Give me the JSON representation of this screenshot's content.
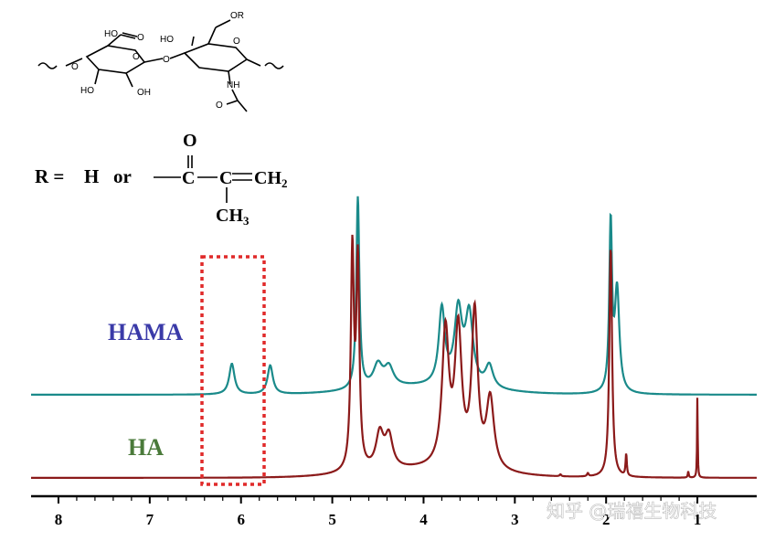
{
  "chart_data": {
    "type": "line",
    "x_axis": {
      "range": [
        8.3,
        0.35
      ],
      "direction": "reversed",
      "ticks": [
        8,
        7,
        6,
        5,
        4,
        3,
        2,
        1
      ],
      "tick_labels": [
        "8",
        "7",
        "6",
        "5",
        "4",
        "3",
        "2",
        "1"
      ]
    },
    "grid": false,
    "series": [
      {
        "name": "HAMA",
        "color": "#1a8a8a",
        "label_color": "#3a3aa8",
        "baseline": 0.0,
        "peaks": [
          {
            "x": 6.1,
            "height": 0.48,
            "width": 0.035
          },
          {
            "x": 5.68,
            "height": 0.45,
            "width": 0.035
          },
          {
            "x": 4.72,
            "height": 3.0,
            "width": 0.02
          },
          {
            "x": 4.5,
            "height": 0.35,
            "width": 0.06
          },
          {
            "x": 4.38,
            "height": 0.3,
            "width": 0.06
          },
          {
            "x": 3.8,
            "height": 1.18,
            "width": 0.04
          },
          {
            "x": 3.62,
            "height": 1.15,
            "width": 0.05
          },
          {
            "x": 3.5,
            "height": 1.1,
            "width": 0.05
          },
          {
            "x": 3.28,
            "height": 0.35,
            "width": 0.05
          },
          {
            "x": 1.95,
            "height": 2.6,
            "width": 0.018
          },
          {
            "x": 1.88,
            "height": 1.6,
            "width": 0.03
          }
        ]
      },
      {
        "name": "HA",
        "color": "#8b1a1a",
        "label_color": "#4a7a3a",
        "baseline": 0.0,
        "peaks": [
          {
            "x": 4.78,
            "height": 3.4,
            "width": 0.02
          },
          {
            "x": 4.72,
            "height": 3.2,
            "width": 0.02
          },
          {
            "x": 4.48,
            "height": 0.55,
            "width": 0.05
          },
          {
            "x": 4.38,
            "height": 0.5,
            "width": 0.05
          },
          {
            "x": 3.76,
            "height": 2.1,
            "width": 0.045
          },
          {
            "x": 3.62,
            "height": 2.1,
            "width": 0.045
          },
          {
            "x": 3.44,
            "height": 2.4,
            "width": 0.04
          },
          {
            "x": 3.27,
            "height": 1.1,
            "width": 0.05
          },
          {
            "x": 2.5,
            "height": 0.03,
            "width": 0.01
          },
          {
            "x": 2.2,
            "height": 0.05,
            "width": 0.01
          },
          {
            "x": 1.95,
            "height": 3.6,
            "width": 0.018
          },
          {
            "x": 1.78,
            "height": 0.35,
            "width": 0.008
          },
          {
            "x": 1.1,
            "height": 0.1,
            "width": 0.006
          },
          {
            "x": 1.0,
            "height": 1.3,
            "width": 0.004
          }
        ]
      }
    ]
  },
  "labels": {
    "hama": "HAMA",
    "ha": "HA",
    "r_eq": "R =",
    "h": "H",
    "or": "or",
    "c": "C",
    "o": "O",
    "ch2": "CH",
    "ch3": "CH",
    "sub2": "2",
    "sub3": "3",
    "ho1": "HO",
    "ho2": "HO",
    "oh1": "OH",
    "ho3": "HO",
    "or_group": "OR",
    "nh": "NH",
    "o_ring1": "O",
    "o_ring2": "O",
    "o_link": "O",
    "o_left": "O",
    "o_carb": "O",
    "o_amide": "O"
  },
  "watermark": "知乎 @瑞禧生物科技"
}
